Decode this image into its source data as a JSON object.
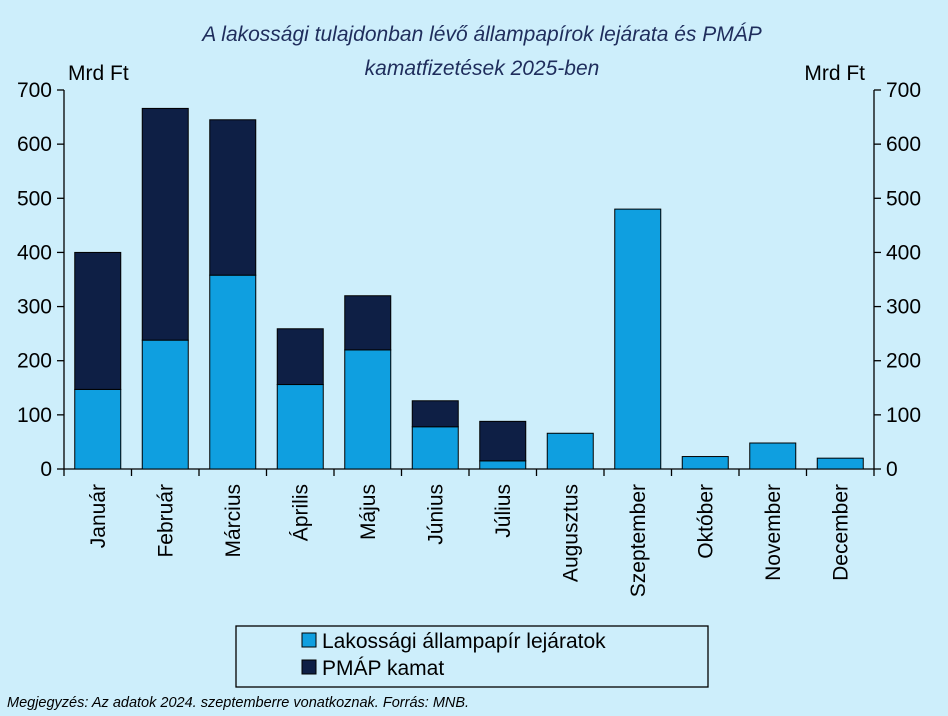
{
  "chart_data": {
    "type": "bar",
    "stacked": true,
    "title": "A lakossági tulajdonban lévő állampapírok lejárata és PMÁP kamatfizetések 2025-ben",
    "title_lines": [
      "A lakossági tulajdonban lévő állampapírok lejárata és PMÁP",
      "kamatfizetések 2025-ben"
    ],
    "y_unit_left": "Mrd Ft",
    "y_unit_right": "Mrd Ft",
    "ylim": [
      0,
      700
    ],
    "yticks": [
      0,
      100,
      200,
      300,
      400,
      500,
      600,
      700
    ],
    "grid": false,
    "categories": [
      "Január",
      "Február",
      "Március",
      "Április",
      "Május",
      "Június",
      "Július",
      "Augusztus",
      "Szeptember",
      "Október",
      "November",
      "December"
    ],
    "series": [
      {
        "name": "Lakossági állampapír lejáratok",
        "color": "#0f9fe0",
        "values": [
          147,
          238,
          358,
          156,
          220,
          78,
          15,
          66,
          480,
          23,
          48,
          20
        ]
      },
      {
        "name": "PMÁP kamat",
        "color": "#0e1f45",
        "values": [
          253,
          428,
          287,
          103,
          100,
          48,
          73,
          0,
          0,
          0,
          0,
          0
        ]
      }
    ],
    "legend_position": "bottom",
    "footnote": "Megjegyzés: Az adatok 2024. szeptemberre vonatkoznak. Forrás: MNB."
  }
}
